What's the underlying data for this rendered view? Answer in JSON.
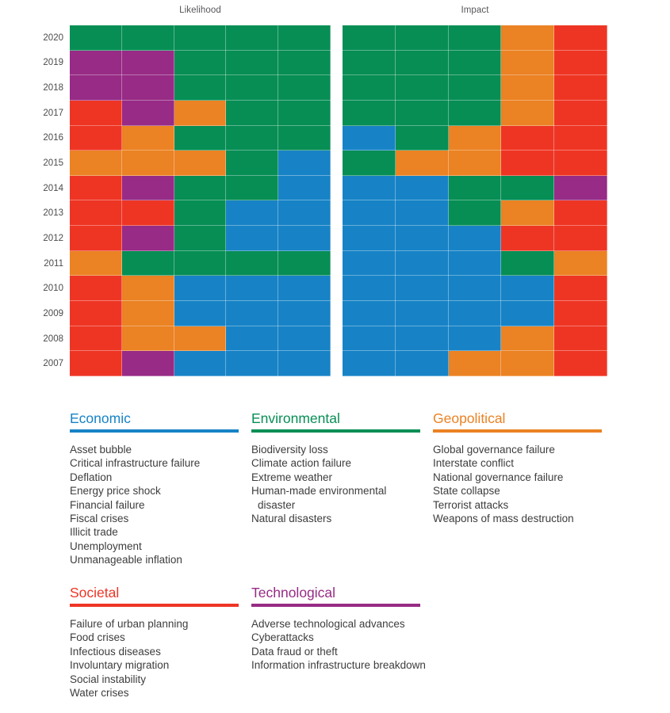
{
  "chart_data": {
    "type": "heatmap",
    "description": "Evolving risks landscape: top 5 global risks per year by category, two panels (Likelihood and Impact), years 2020 down to 2007, 5 ranked cells per year colored by risk category.",
    "years": [
      "2020",
      "2019",
      "2018",
      "2017",
      "2016",
      "2015",
      "2014",
      "2013",
      "2012",
      "2011",
      "2010",
      "2009",
      "2008",
      "2007"
    ],
    "legend_position": "bottom",
    "grid": "subtle-white-lines",
    "category_labels": {
      "econ": "Economic",
      "env": "Environmental",
      "geo": "Geopolitical",
      "soc": "Societal",
      "tech": "Technological"
    },
    "category_colors": {
      "econ": "#1783c6",
      "env": "#078e55",
      "geo": "#eb8223",
      "soc": "#ee3524",
      "tech": "#972b85"
    },
    "panels": [
      {
        "title": "Likelihood",
        "rows": [
          [
            "env",
            "env",
            "env",
            "env",
            "env"
          ],
          [
            "tech",
            "tech",
            "env",
            "env",
            "env"
          ],
          [
            "tech",
            "tech",
            "env",
            "env",
            "env"
          ],
          [
            "soc",
            "tech",
            "geo",
            "env",
            "env"
          ],
          [
            "soc",
            "geo",
            "env",
            "env",
            "env"
          ],
          [
            "geo",
            "geo",
            "geo",
            "env",
            "econ"
          ],
          [
            "soc",
            "tech",
            "env",
            "env",
            "econ"
          ],
          [
            "soc",
            "soc",
            "env",
            "econ",
            "econ"
          ],
          [
            "soc",
            "tech",
            "env",
            "econ",
            "econ"
          ],
          [
            "geo",
            "env",
            "env",
            "env",
            "env"
          ],
          [
            "soc",
            "geo",
            "econ",
            "econ",
            "econ"
          ],
          [
            "soc",
            "geo",
            "econ",
            "econ",
            "econ"
          ],
          [
            "soc",
            "geo",
            "geo",
            "econ",
            "econ"
          ],
          [
            "soc",
            "tech",
            "econ",
            "econ",
            "econ"
          ]
        ]
      },
      {
        "title": "Impact",
        "rows": [
          [
            "env",
            "env",
            "env",
            "geo",
            "soc"
          ],
          [
            "env",
            "env",
            "env",
            "geo",
            "soc"
          ],
          [
            "env",
            "env",
            "env",
            "geo",
            "soc"
          ],
          [
            "env",
            "env",
            "env",
            "geo",
            "soc"
          ],
          [
            "econ",
            "env",
            "geo",
            "soc",
            "soc"
          ],
          [
            "env",
            "geo",
            "geo",
            "soc",
            "soc"
          ],
          [
            "econ",
            "econ",
            "env",
            "env",
            "tech"
          ],
          [
            "econ",
            "econ",
            "env",
            "geo",
            "soc"
          ],
          [
            "econ",
            "econ",
            "econ",
            "soc",
            "soc"
          ],
          [
            "econ",
            "econ",
            "econ",
            "env",
            "geo"
          ],
          [
            "econ",
            "econ",
            "econ",
            "econ",
            "soc"
          ],
          [
            "econ",
            "econ",
            "econ",
            "econ",
            "soc"
          ],
          [
            "econ",
            "econ",
            "econ",
            "geo",
            "soc"
          ],
          [
            "econ",
            "econ",
            "geo",
            "geo",
            "soc"
          ]
        ]
      }
    ]
  },
  "legend": {
    "sections": [
      {
        "id": "economic",
        "category": "econ",
        "title": "Economic",
        "items": [
          "Asset bubble",
          "Critical infrastructure failure",
          "Deflation",
          "Energy price shock",
          "Financial failure",
          "Fiscal crises",
          "Illicit trade",
          "Unemployment",
          "Unmanageable inflation"
        ]
      },
      {
        "id": "environmental",
        "category": "env",
        "title": "Environmental",
        "items": [
          "Biodiversity loss",
          "Climate action failure",
          "Extreme weather",
          "Human-made environmental disaster",
          "Natural disasters"
        ]
      },
      {
        "id": "geopolitical",
        "category": "geo",
        "title": "Geopolitical",
        "items": [
          "Global governance failure",
          "Interstate conflict",
          "National governance failure",
          "State collapse",
          "Terrorist attacks",
          "Weapons of mass destruction"
        ]
      },
      {
        "id": "societal",
        "category": "soc",
        "title": "Societal",
        "items": [
          "Failure of urban planning",
          "Food crises",
          "Infectious diseases",
          "Involuntary migration",
          "Social instability",
          "Water crises"
        ]
      },
      {
        "id": "technological",
        "category": "tech",
        "title": "Technological",
        "items": [
          "Adverse technological advances",
          "Cyberattacks",
          "Data fraud or theft",
          "Information infrastructure breakdown"
        ]
      }
    ]
  }
}
